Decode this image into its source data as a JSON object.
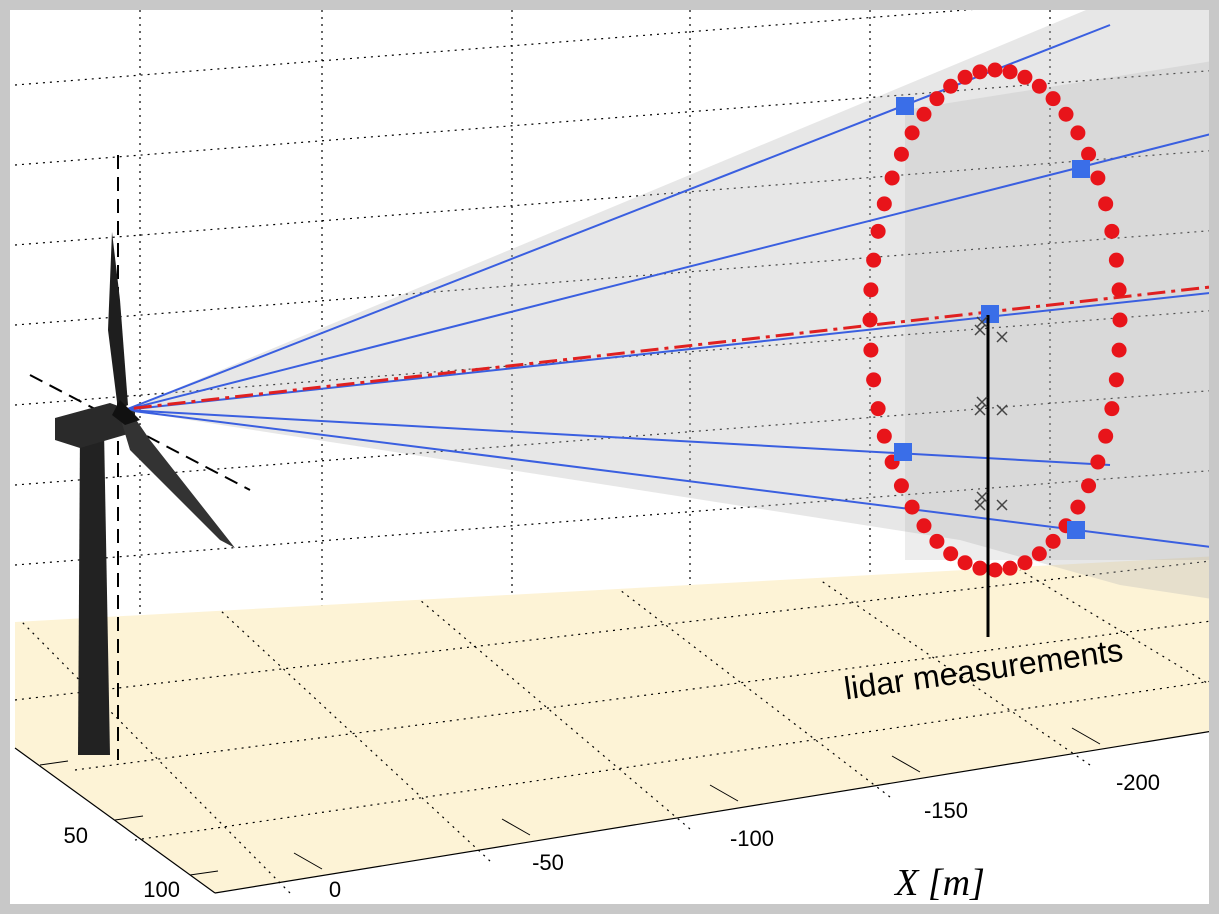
{
  "x_axis": {
    "label": "X [m]",
    "ticks": [
      "0",
      "-50",
      "-100",
      "-150",
      "-200"
    ]
  },
  "y_axis": {
    "ticks": [
      "100",
      "50"
    ]
  },
  "annotation": "lidar measurements"
}
